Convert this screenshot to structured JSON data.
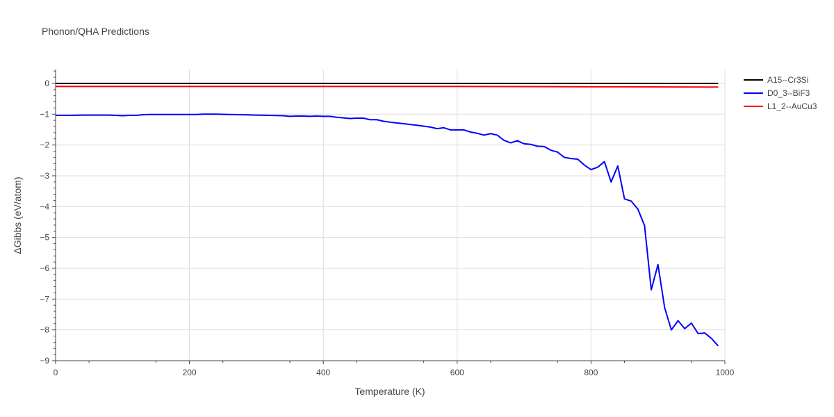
{
  "chart_data": {
    "type": "line",
    "title": "Phonon/QHA Predictions",
    "xlabel": "Temperature (K)",
    "ylabel": "ΔGibbs (eV/atom)",
    "xlim": [
      0,
      1000
    ],
    "ylim": [
      -9,
      0.45
    ],
    "x_ticks": [
      0,
      200,
      400,
      600,
      800,
      1000
    ],
    "y_ticks": [
      0,
      -1,
      -2,
      -3,
      -4,
      -5,
      -6,
      -7,
      -8,
      -9
    ],
    "x_tick_labels": [
      "0",
      "200",
      "400",
      "600",
      "800",
      "1000"
    ],
    "y_tick_labels": [
      "0",
      "−1",
      "−2",
      "−3",
      "−4",
      "−5",
      "−6",
      "−7",
      "−8",
      "−9"
    ],
    "grid": true,
    "legend_position": "top-right",
    "series": [
      {
        "name": "A15--Cr3Si",
        "color": "#000000",
        "x": [
          0,
          990
        ],
        "y": [
          0.0,
          0.0
        ]
      },
      {
        "name": "D0_3--BiF3",
        "color": "#0000ff",
        "x": [
          0,
          20,
          40,
          60,
          80,
          100,
          110,
          120,
          130,
          140,
          160,
          180,
          200,
          210,
          220,
          240,
          260,
          280,
          300,
          320,
          340,
          350,
          360,
          370,
          380,
          390,
          400,
          410,
          420,
          430,
          440,
          450,
          460,
          470,
          480,
          490,
          500,
          520,
          540,
          560,
          570,
          580,
          590,
          600,
          610,
          620,
          630,
          640,
          650,
          660,
          670,
          680,
          690,
          700,
          710,
          720,
          730,
          740,
          750,
          760,
          770,
          780,
          790,
          800,
          810,
          820,
          830,
          840,
          850,
          860,
          870,
          880,
          890,
          900,
          910,
          920,
          930,
          940,
          950,
          960,
          970,
          980,
          990
        ],
        "y": [
          -1.04,
          -1.04,
          -1.03,
          -1.03,
          -1.03,
          -1.05,
          -1.04,
          -1.04,
          -1.02,
          -1.01,
          -1.01,
          -1.01,
          -1.01,
          -1.01,
          -1.0,
          -1.0,
          -1.01,
          -1.02,
          -1.03,
          -1.04,
          -1.05,
          -1.07,
          -1.06,
          -1.06,
          -1.07,
          -1.06,
          -1.07,
          -1.07,
          -1.1,
          -1.12,
          -1.14,
          -1.13,
          -1.13,
          -1.18,
          -1.18,
          -1.23,
          -1.26,
          -1.31,
          -1.36,
          -1.42,
          -1.47,
          -1.44,
          -1.51,
          -1.51,
          -1.51,
          -1.58,
          -1.62,
          -1.68,
          -1.63,
          -1.68,
          -1.85,
          -1.93,
          -1.86,
          -1.96,
          -1.98,
          -2.04,
          -2.05,
          -2.17,
          -2.23,
          -2.4,
          -2.44,
          -2.46,
          -2.65,
          -2.8,
          -2.72,
          -2.54,
          -3.2,
          -2.68,
          -3.75,
          -3.82,
          -4.08,
          -4.62,
          -6.7,
          -5.88,
          -7.28,
          -8.0,
          -7.7,
          -7.96,
          -7.78,
          -8.12,
          -8.1,
          -8.28,
          -8.52
        ]
      },
      {
        "name": "L1_2--AuCu3",
        "color": "#ff0000",
        "x": [
          0,
          200,
          400,
          600,
          800,
          990
        ],
        "y": [
          -0.1,
          -0.1,
          -0.1,
          -0.1,
          -0.11,
          -0.12
        ]
      }
    ]
  }
}
